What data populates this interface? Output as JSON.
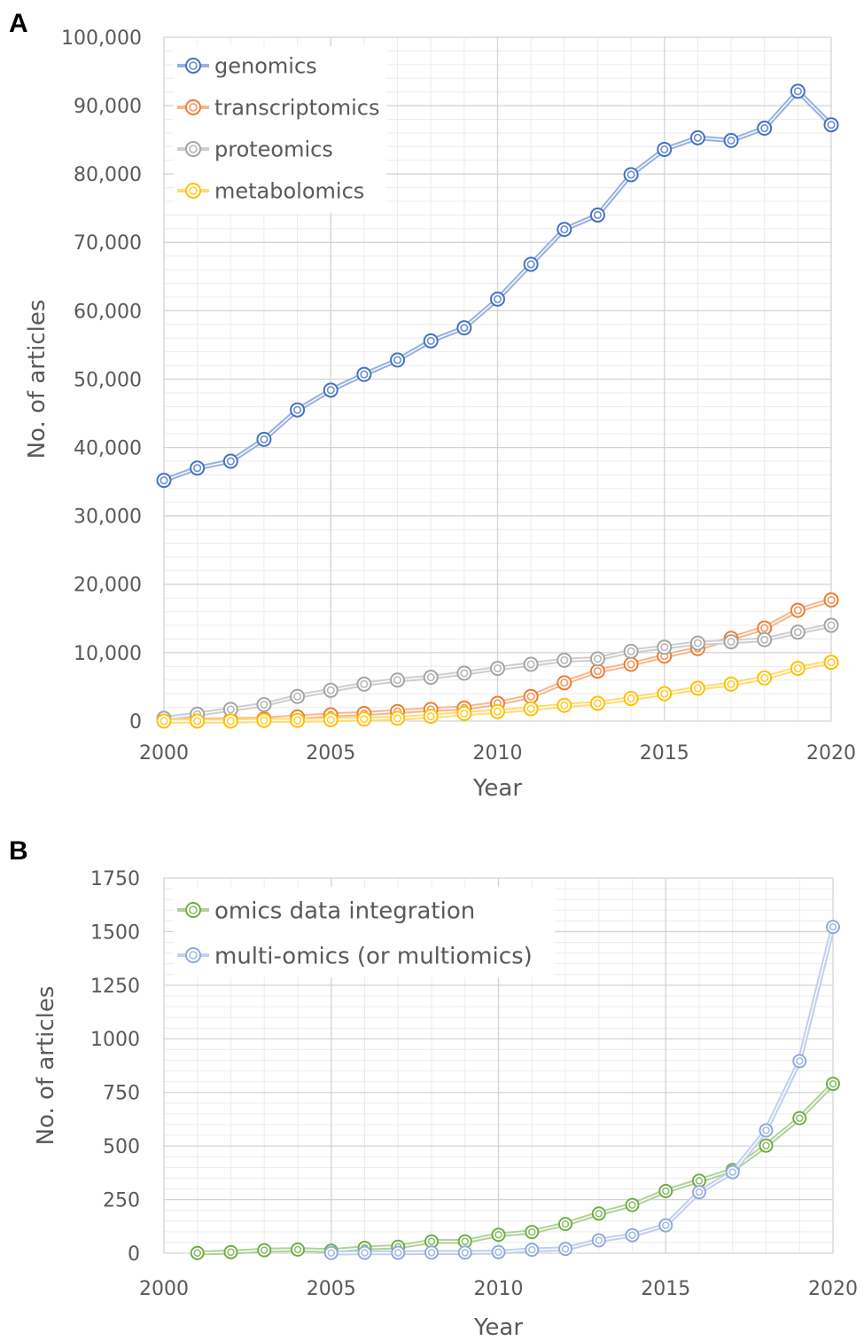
{
  "figure": {
    "panel_a_label": "A",
    "panel_b_label": "B"
  },
  "chart_data": [
    {
      "type": "line",
      "panel": "A",
      "title": "",
      "xlabel": "Year",
      "ylabel": "No. of articles",
      "xlim": [
        2000,
        2020
      ],
      "ylim": [
        0,
        100000
      ],
      "xticks": [
        "2000",
        "2005",
        "2010",
        "2015",
        "2020"
      ],
      "yticks": [
        "0",
        "10,000",
        "20,000",
        "30,000",
        "40,000",
        "50,000",
        "60,000",
        "70,000",
        "80,000",
        "90,000",
        "100,000"
      ],
      "grid": true,
      "legend_position": "top-left",
      "x": [
        2000,
        2001,
        2002,
        2003,
        2004,
        2005,
        2006,
        2007,
        2008,
        2009,
        2010,
        2011,
        2012,
        2013,
        2014,
        2015,
        2016,
        2017,
        2018,
        2019,
        2020
      ],
      "series": [
        {
          "name": "genomics",
          "color": "#4472c4",
          "values": [
            35200,
            37000,
            38000,
            41200,
            45500,
            48400,
            50700,
            52800,
            55600,
            57500,
            61700,
            66800,
            71900,
            74000,
            79900,
            83600,
            85300,
            84900,
            86700,
            92100,
            87200
          ]
        },
        {
          "name": "transcriptomics",
          "color": "#ed7d31",
          "values": [
            100,
            150,
            200,
            300,
            600,
            900,
            1100,
            1400,
            1700,
            1900,
            2600,
            3600,
            5600,
            7300,
            8300,
            9500,
            10600,
            12100,
            13600,
            16200,
            17700
          ]
        },
        {
          "name": "proteomics",
          "color": "#a5a5a5",
          "values": [
            400,
            1000,
            1700,
            2400,
            3600,
            4500,
            5400,
            6000,
            6400,
            7000,
            7700,
            8300,
            8900,
            9100,
            10200,
            10800,
            11400,
            11600,
            11900,
            13000,
            14000
          ]
        },
        {
          "name": "metabolomics",
          "color": "#ffc000",
          "values": [
            0,
            0,
            0,
            100,
            100,
            200,
            300,
            400,
            700,
            1100,
            1400,
            1800,
            2300,
            2600,
            3300,
            4000,
            4800,
            5400,
            6300,
            7700,
            8600
          ]
        }
      ]
    },
    {
      "type": "line",
      "panel": "B",
      "title": "",
      "xlabel": "Year",
      "ylabel": "No. of articles",
      "xlim": [
        2000,
        2020
      ],
      "ylim": [
        0,
        1750
      ],
      "xticks": [
        "2000",
        "2005",
        "2010",
        "2015",
        "2020"
      ],
      "yticks": [
        "0",
        "250",
        "500",
        "750",
        "1000",
        "1250",
        "1500",
        "1750"
      ],
      "grid": true,
      "legend_position": "top-left",
      "series": [
        {
          "name": "omics data integration",
          "color": "#70ad47",
          "x": [
            2001,
            2002,
            2003,
            2004,
            2005,
            2006,
            2007,
            2008,
            2009,
            2010,
            2011,
            2012,
            2013,
            2014,
            2015,
            2016,
            2017,
            2018,
            2019,
            2020
          ],
          "values": [
            1,
            5,
            14,
            17,
            12,
            25,
            30,
            55,
            55,
            86,
            99,
            136,
            185,
            225,
            290,
            338,
            388,
            502,
            630,
            790
          ]
        },
        {
          "name": "multi-omics (or multiomics)",
          "color": "#8faadc",
          "x": [
            2005,
            2006,
            2007,
            2008,
            2009,
            2010,
            2011,
            2012,
            2013,
            2014,
            2015,
            2016,
            2017,
            2018,
            2019,
            2020
          ],
          "values": [
            1,
            2,
            2,
            3,
            3,
            5,
            16,
            20,
            60,
            84,
            130,
            285,
            378,
            573,
            896,
            1522
          ]
        }
      ]
    }
  ]
}
